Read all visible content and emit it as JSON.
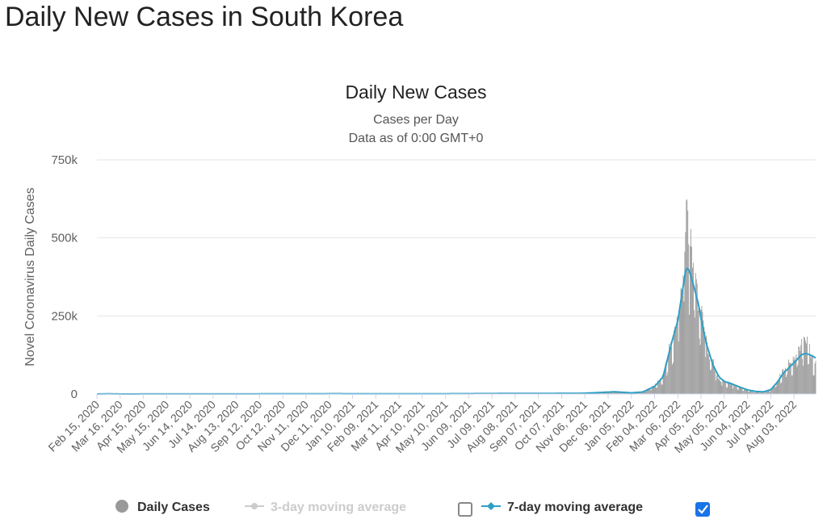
{
  "page": {
    "heading": "Daily New Cases in South Korea"
  },
  "chart_data": {
    "type": "bar",
    "title": "Daily New Cases",
    "subtitle": "Cases per Day",
    "subtitle2": "Data as of 0:00 GMT+0",
    "ylabel": "Novel Coronavirus Daily Cases",
    "xlabel": "",
    "ylim": [
      0,
      750000
    ],
    "yticks": [
      {
        "value": 0,
        "label": "0"
      },
      {
        "value": 250000,
        "label": "250k"
      },
      {
        "value": 500000,
        "label": "500k"
      },
      {
        "value": 750000,
        "label": "750k"
      }
    ],
    "grid": true,
    "x_start": "Feb 15, 2020",
    "x_end": "Aug 31, 2022",
    "xticks": [
      "Feb 15, 2020",
      "Mar 16, 2020",
      "Apr 15, 2020",
      "May 15, 2020",
      "Jun 14, 2020",
      "Jul 14, 2020",
      "Aug 13, 2020",
      "Sep 12, 2020",
      "Oct 12, 2020",
      "Nov 11, 2020",
      "Dec 11, 2020",
      "Jan 10, 2021",
      "Feb 09, 2021",
      "Mar 11, 2021",
      "Apr 10, 2021",
      "May 10, 2021",
      "Jun 09, 2021",
      "Jul 09, 2021",
      "Aug 08, 2021",
      "Sep 07, 2021",
      "Oct 07, 2021",
      "Nov 06, 2021",
      "Dec 06, 2021",
      "Jan 05, 2022",
      "Feb 04, 2022",
      "Mar 06, 2022",
      "Apr 05, 2022",
      "May 05, 2022",
      "Jun 04, 2022",
      "Jul 04, 2022",
      "Aug 03, 2022"
    ],
    "series": [
      {
        "name": "Daily Cases",
        "kind": "bar",
        "color": "#999999",
        "points": [
          [
            "Feb 15, 2020",
            0
          ],
          [
            "Mar 01, 2020",
            600
          ],
          [
            "Mar 16, 2020",
            100
          ],
          [
            "Aug 27, 2020",
            400
          ],
          [
            "Dec 25, 2020",
            1200
          ],
          [
            "Jan 10, 2021",
            600
          ],
          [
            "Apr 10, 2021",
            600
          ],
          [
            "Jul 25, 2021",
            1800
          ],
          [
            "Oct 07, 2021",
            1500
          ],
          [
            "Nov 06, 2021",
            2200
          ],
          [
            "Dec 15, 2021",
            7800
          ],
          [
            "Jan 05, 2022",
            4000
          ],
          [
            "Jan 20, 2022",
            6600
          ],
          [
            "Feb 04, 2022",
            27000
          ],
          [
            "Feb 15, 2022",
            57000
          ],
          [
            "Feb 25, 2022",
            165000
          ],
          [
            "Mar 06, 2022",
            230000
          ],
          [
            "Mar 10, 2022",
            340000
          ],
          [
            "Mar 13, 2022",
            380000
          ],
          [
            "Mar 17, 2022",
            620000
          ],
          [
            "Mar 20, 2022",
            480000
          ],
          [
            "Mar 23, 2022",
            490000
          ],
          [
            "Mar 26, 2022",
            420000
          ],
          [
            "Mar 29, 2022",
            350000
          ],
          [
            "Apr 02, 2022",
            280000
          ],
          [
            "Apr 05, 2022",
            270000
          ],
          [
            "Apr 10, 2022",
            200000
          ],
          [
            "Apr 15, 2022",
            125000
          ],
          [
            "Apr 20, 2022",
            110000
          ],
          [
            "Apr 25, 2022",
            60000
          ],
          [
            "May 01, 2022",
            40000
          ],
          [
            "May 05, 2022",
            45000
          ],
          [
            "May 15, 2022",
            30000
          ],
          [
            "May 25, 2022",
            20000
          ],
          [
            "Jun 04, 2022",
            12000
          ],
          [
            "Jun 15, 2022",
            7000
          ],
          [
            "Jun 25, 2022",
            6000
          ],
          [
            "Jul 04, 2022",
            13000
          ],
          [
            "Jul 12, 2022",
            40000
          ],
          [
            "Jul 20, 2022",
            75000
          ],
          [
            "Jul 28, 2022",
            100000
          ],
          [
            "Aug 03, 2022",
            110000
          ],
          [
            "Aug 10, 2022",
            150000
          ],
          [
            "Aug 17, 2022",
            180000
          ],
          [
            "Aug 23, 2022",
            150000
          ],
          [
            "Aug 27, 2022",
            110000
          ],
          [
            "Aug 31, 2022",
            100000
          ]
        ]
      },
      {
        "name": "3-day moving average",
        "kind": "line",
        "visible": false,
        "color": "#cccccc",
        "points": []
      },
      {
        "name": "7-day moving average",
        "kind": "line",
        "visible": true,
        "color": "#2e9fc4",
        "points": [
          [
            "Feb 15, 2020",
            0
          ],
          [
            "Mar 01, 2020",
            500
          ],
          [
            "Mar 16, 2020",
            100
          ],
          [
            "Aug 27, 2020",
            300
          ],
          [
            "Dec 25, 2020",
            1000
          ],
          [
            "Jan 10, 2021",
            500
          ],
          [
            "Apr 10, 2021",
            600
          ],
          [
            "Jul 25, 2021",
            1500
          ],
          [
            "Oct 07, 2021",
            1700
          ],
          [
            "Nov 06, 2021",
            2300
          ],
          [
            "Dec 15, 2021",
            7000
          ],
          [
            "Jan 05, 2022",
            3500
          ],
          [
            "Jan 20, 2022",
            6500
          ],
          [
            "Feb 04, 2022",
            24000
          ],
          [
            "Feb 15, 2022",
            55000
          ],
          [
            "Feb 25, 2022",
            155000
          ],
          [
            "Mar 06, 2022",
            235000
          ],
          [
            "Mar 12, 2022",
            330000
          ],
          [
            "Mar 16, 2022",
            395000
          ],
          [
            "Mar 19, 2022",
            405000
          ],
          [
            "Mar 22, 2022",
            385000
          ],
          [
            "Mar 26, 2022",
            350000
          ],
          [
            "Apr 02, 2022",
            285000
          ],
          [
            "Apr 06, 2022",
            225000
          ],
          [
            "Apr 12, 2022",
            160000
          ],
          [
            "Apr 20, 2022",
            95000
          ],
          [
            "Apr 28, 2022",
            55000
          ],
          [
            "May 05, 2022",
            40000
          ],
          [
            "May 15, 2022",
            32000
          ],
          [
            "May 25, 2022",
            22000
          ],
          [
            "Jun 04, 2022",
            13000
          ],
          [
            "Jun 15, 2022",
            8000
          ],
          [
            "Jun 25, 2022",
            7000
          ],
          [
            "Jul 04, 2022",
            14000
          ],
          [
            "Jul 12, 2022",
            36000
          ],
          [
            "Jul 20, 2022",
            66000
          ],
          [
            "Jul 28, 2022",
            85000
          ],
          [
            "Aug 05, 2022",
            105000
          ],
          [
            "Aug 12, 2022",
            125000
          ],
          [
            "Aug 18, 2022",
            130000
          ],
          [
            "Aug 24, 2022",
            125000
          ],
          [
            "Aug 28, 2022",
            120000
          ],
          [
            "Aug 31, 2022",
            115000
          ]
        ]
      }
    ],
    "legend": {
      "position": "bottom-center",
      "items": [
        {
          "label": "Daily Cases",
          "active": true,
          "color": "#999999",
          "toggle": false
        },
        {
          "label": "3-day moving average",
          "active": false,
          "color": "#cccccc",
          "toggle": true,
          "checked": false
        },
        {
          "label": "7-day moving average",
          "active": true,
          "color": "#2e9fc4",
          "toggle": true,
          "checked": true
        }
      ]
    }
  }
}
